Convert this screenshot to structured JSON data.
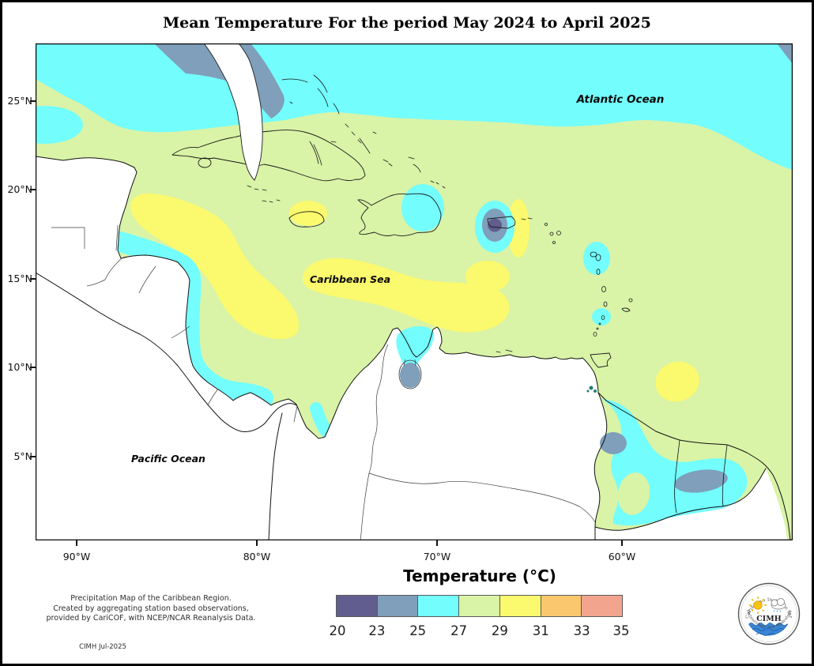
{
  "title": "Mean Temperature For the period May 2024 to April 2025",
  "map": {
    "labels": {
      "atlantic": "Atlantic Ocean",
      "caribbean": "Caribbean Sea",
      "pacific": "Pacific Ocean"
    }
  },
  "axes": {
    "lat": [
      "25°N",
      "20°N",
      "15°N",
      "10°N",
      "5°N"
    ],
    "lon": [
      "90°W",
      "80°W",
      "70°W",
      "60°W"
    ]
  },
  "legend": {
    "title": "Temperature (°C)",
    "ticks": [
      "20",
      "23",
      "25",
      "27",
      "29",
      "31",
      "33",
      "35"
    ],
    "colors": [
      "#615E8F",
      "#7F9FBA",
      "#73FDFD",
      "#D9F3A7",
      "#FBF96D",
      "#FBC76E",
      "#F2A48F"
    ]
  },
  "credits": {
    "lines": [
      "Precipitation Map of the Caribbean Region.",
      "Created by aggregating station based observations,",
      "provided by CariCOF, with NCEP/NCAR Reanalysis Data."
    ],
    "stamp": "CIMH Jul-2025"
  },
  "logo": {
    "acronym": "CIMH",
    "arc_top": "Caribbean Institute for",
    "arc_bottom": "Meteorology and Hydrology"
  }
}
